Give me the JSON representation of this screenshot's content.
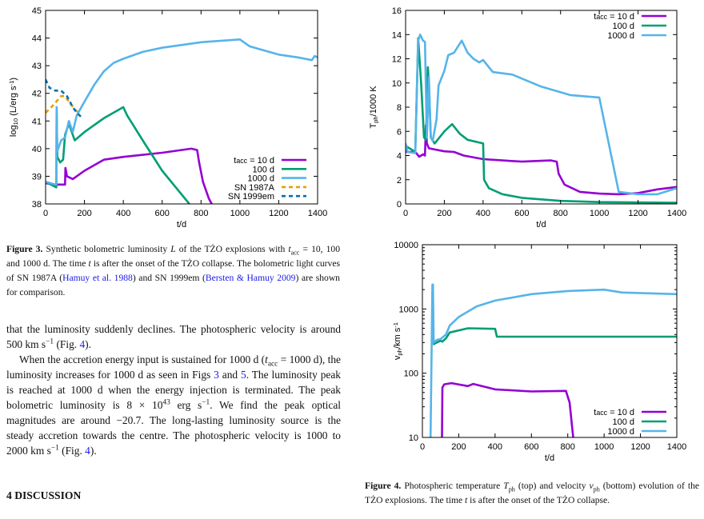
{
  "figure3": {
    "caption_label": "Figure 3.",
    "caption_parts": [
      " Synthetic bolometric luminosity ",
      "L",
      " of the TŻO explosions with ",
      "t",
      "acc",
      " = 10, 100 and 1000 d. The time ",
      "t",
      " is after the onset of the TŻO collapse. The bolometric light curves of SN 1987A (",
      "Hamuy et al. 1988",
      ") and SN 1999em (",
      "Bersten & Hamuy 2009",
      ") are shown for comparison."
    ]
  },
  "figure4": {
    "caption_label": "Figure 4.",
    "caption_parts": [
      " Photospheric temperature ",
      "T",
      "ph",
      " (top) and velocity ",
      "v",
      "ph",
      " (bottom) evolution of the TŻO explosions. The time ",
      "t",
      " is after the onset of the TŻO collapse."
    ]
  },
  "body": {
    "p1": [
      "that the luminosity suddenly declines. The photospheric velocity is around 500 km s",
      "−1",
      " (Fig. ",
      "4",
      ")."
    ],
    "p2": [
      "When the accretion energy input is sustained for 1000 d (",
      "t",
      "acc",
      " = 1000 d), the luminosity increases for 1000 d as seen in Figs ",
      "3",
      " and ",
      "5",
      ". The luminosity peak is reached at 1000 d when the energy injection is terminated. The peak bolometric luminosity is 8 × 10",
      "43",
      " erg s",
      "−1",
      ". We find the peak optical magnitudes are around −20.7. The long-lasting luminosity source is the steady accretion towards the centre. The photospheric velocity is 1000 to 2000 km s",
      "−1",
      " (Fig. ",
      "4",
      ")."
    ],
    "section_heading": "4  DISCUSSION"
  },
  "colors": {
    "tacc_10d": "#9400d3",
    "tacc_100d": "#009e73",
    "tacc_1000d": "#56b4e9",
    "sn1987a": "#e69f00",
    "sn1999em": "#0072b2"
  },
  "chart_data": [
    {
      "type": "line",
      "xlabel": "t/d",
      "ylabel": [
        {
          "t": "log"
        },
        {
          "t": "10",
          "sub": true
        },
        {
          "t": " (L/erg s"
        },
        {
          "t": "-1",
          "sup": true
        },
        {
          "t": ")"
        }
      ],
      "xlim": [
        0,
        1400
      ],
      "ylim": [
        38,
        45
      ],
      "yscale": "linear",
      "xticks": [
        0,
        200,
        400,
        600,
        800,
        1000,
        1200,
        1400
      ],
      "yticks": [
        38,
        39,
        40,
        41,
        42,
        43,
        44,
        45
      ],
      "grid": false,
      "legend": "bottom-right",
      "series": [
        {
          "name": [
            {
              "t": "t"
            },
            {
              "t": "acc",
              "small": true
            },
            {
              "t": " = 10 d"
            }
          ],
          "color": "#9400d3",
          "dash": false,
          "points": [
            [
              0,
              38.75
            ],
            [
              50,
              38.7
            ],
            [
              100,
              38.7
            ],
            [
              102,
              39.3
            ],
            [
              110,
              39.0
            ],
            [
              140,
              38.9
            ],
            [
              200,
              39.2
            ],
            [
              300,
              39.6
            ],
            [
              400,
              39.7
            ],
            [
              600,
              39.85
            ],
            [
              750,
              40.0
            ],
            [
              780,
              39.95
            ],
            [
              790,
              39.5
            ],
            [
              810,
              38.8
            ],
            [
              840,
              38.2
            ],
            [
              855,
              38.0
            ]
          ]
        },
        {
          "name": [
            {
              "t": "100 d"
            }
          ],
          "color": "#009e73",
          "dash": false,
          "points": [
            [
              0,
              38.8
            ],
            [
              55,
              38.6
            ],
            [
              57,
              41.5
            ],
            [
              60,
              39.7
            ],
            [
              75,
              39.5
            ],
            [
              90,
              39.6
            ],
            [
              100,
              40.5
            ],
            [
              120,
              40.9
            ],
            [
              150,
              40.3
            ],
            [
              200,
              40.6
            ],
            [
              300,
              41.1
            ],
            [
              400,
              41.5
            ],
            [
              420,
              41.2
            ],
            [
              500,
              40.3
            ],
            [
              600,
              39.2
            ],
            [
              740,
              38.0
            ]
          ]
        },
        {
          "name": [
            {
              "t": "1000 d"
            }
          ],
          "color": "#56b4e9",
          "dash": false,
          "points": [
            [
              0,
              38.8
            ],
            [
              50,
              38.7
            ],
            [
              55,
              38.7
            ],
            [
              57,
              41.5
            ],
            [
              60,
              39.9
            ],
            [
              80,
              40.3
            ],
            [
              100,
              40.4
            ],
            [
              120,
              41.0
            ],
            [
              140,
              40.6
            ],
            [
              160,
              41.2
            ],
            [
              200,
              41.7
            ],
            [
              250,
              42.3
            ],
            [
              300,
              42.8
            ],
            [
              350,
              43.1
            ],
            [
              400,
              43.25
            ],
            [
              500,
              43.5
            ],
            [
              600,
              43.65
            ],
            [
              800,
              43.85
            ],
            [
              1000,
              43.95
            ],
            [
              1050,
              43.7
            ],
            [
              1100,
              43.6
            ],
            [
              1200,
              43.4
            ],
            [
              1300,
              43.3
            ],
            [
              1370,
              43.2
            ],
            [
              1385,
              43.35
            ],
            [
              1400,
              43.3
            ]
          ]
        },
        {
          "name": [
            {
              "t": "SN 1987A"
            }
          ],
          "color": "#e69f00",
          "dash": true,
          "points": [
            [
              0,
              41.3
            ],
            [
              30,
              41.5
            ],
            [
              80,
              41.9
            ],
            [
              100,
              41.9
            ],
            [
              130,
              41.6
            ],
            [
              160,
              41.35
            ],
            [
              180,
              41.3
            ]
          ]
        },
        {
          "name": [
            {
              "t": "SN 1999em"
            }
          ],
          "color": "#0072b2",
          "dash": true,
          "points": [
            [
              0,
              42.5
            ],
            [
              20,
              42.2
            ],
            [
              50,
              42.1
            ],
            [
              80,
              42.1
            ],
            [
              110,
              41.9
            ],
            [
              140,
              41.5
            ],
            [
              160,
              41.3
            ],
            [
              190,
              41.1
            ]
          ]
        }
      ]
    },
    {
      "type": "line",
      "xlabel": "t/d",
      "ylabel": [
        {
          "t": "T"
        },
        {
          "t": "ph",
          "sub": true
        },
        {
          "t": "/1000 K"
        }
      ],
      "xlim": [
        0,
        1400
      ],
      "ylim": [
        0,
        16
      ],
      "yscale": "linear",
      "xticks": [
        0,
        200,
        400,
        600,
        800,
        1000,
        1200,
        1400
      ],
      "yticks": [
        0,
        2,
        4,
        6,
        8,
        10,
        12,
        14,
        16
      ],
      "grid": false,
      "legend": "top-right",
      "series": [
        {
          "name": [
            {
              "t": "t"
            },
            {
              "t": "acc",
              "small": true
            },
            {
              "t": " = 10 d"
            }
          ],
          "color": "#9400d3",
          "dash": false,
          "points": [
            [
              0,
              5
            ],
            [
              5,
              4.3
            ],
            [
              50,
              4.3
            ],
            [
              70,
              3.9
            ],
            [
              90,
              4.1
            ],
            [
              100,
              4.0
            ],
            [
              105,
              6.5
            ],
            [
              110,
              5
            ],
            [
              120,
              4.6
            ],
            [
              150,
              4.5
            ],
            [
              200,
              4.35
            ],
            [
              250,
              4.3
            ],
            [
              300,
              4.0
            ],
            [
              400,
              3.7
            ],
            [
              500,
              3.6
            ],
            [
              600,
              3.5
            ],
            [
              750,
              3.6
            ],
            [
              780,
              3.5
            ],
            [
              790,
              2.5
            ],
            [
              820,
              1.6
            ],
            [
              900,
              1.0
            ],
            [
              1000,
              0.85
            ],
            [
              1100,
              0.8
            ],
            [
              1200,
              0.9
            ],
            [
              1300,
              1.2
            ],
            [
              1400,
              1.4
            ]
          ]
        },
        {
          "name": [
            {
              "t": "100 d"
            }
          ],
          "color": "#009e73",
          "dash": false,
          "points": [
            [
              0,
              4.8
            ],
            [
              50,
              4.3
            ],
            [
              65,
              13.7
            ],
            [
              80,
              10
            ],
            [
              95,
              5.5
            ],
            [
              105,
              5.3
            ],
            [
              115,
              11.3
            ],
            [
              120,
              10
            ],
            [
              130,
              5.5
            ],
            [
              150,
              5
            ],
            [
              200,
              6
            ],
            [
              240,
              6.6
            ],
            [
              280,
              5.8
            ],
            [
              320,
              5.3
            ],
            [
              400,
              5.0
            ],
            [
              405,
              2
            ],
            [
              430,
              1.3
            ],
            [
              500,
              0.8
            ],
            [
              600,
              0.5
            ],
            [
              800,
              0.25
            ],
            [
              1000,
              0.15
            ],
            [
              1400,
              0.1
            ]
          ]
        },
        {
          "name": [
            {
              "t": "1000 d"
            }
          ],
          "color": "#56b4e9",
          "dash": false,
          "points": [
            [
              0,
              5
            ],
            [
              10,
              4.3
            ],
            [
              50,
              4.2
            ],
            [
              65,
              13.5
            ],
            [
              75,
              14
            ],
            [
              90,
              13.5
            ],
            [
              100,
              13.4
            ],
            [
              110,
              5.5
            ],
            [
              120,
              10.5
            ],
            [
              130,
              5.5
            ],
            [
              140,
              5.2
            ],
            [
              160,
              7
            ],
            [
              170,
              9.8
            ],
            [
              200,
              11
            ],
            [
              220,
              12.3
            ],
            [
              250,
              12.5
            ],
            [
              290,
              13.5
            ],
            [
              320,
              12.5
            ],
            [
              350,
              12
            ],
            [
              380,
              11.7
            ],
            [
              400,
              11.9
            ],
            [
              420,
              11.5
            ],
            [
              450,
              10.9
            ],
            [
              550,
              10.7
            ],
            [
              700,
              9.7
            ],
            [
              850,
              9.0
            ],
            [
              1000,
              8.8
            ],
            [
              1100,
              1.0
            ],
            [
              1200,
              0.8
            ],
            [
              1300,
              0.8
            ],
            [
              1400,
              1.3
            ]
          ]
        }
      ]
    },
    {
      "type": "line",
      "xlabel": "t/d",
      "ylabel": [
        {
          "t": "v"
        },
        {
          "t": "ph",
          "sub": true
        },
        {
          "t": "/km s"
        },
        {
          "t": "-1",
          "sup": true
        }
      ],
      "xlim": [
        0,
        1400
      ],
      "ylim": [
        10,
        10000
      ],
      "yscale": "log",
      "xticks": [
        0,
        200,
        400,
        600,
        800,
        1000,
        1200,
        1400
      ],
      "yticks": [
        10,
        100,
        1000,
        10000
      ],
      "grid": false,
      "legend": "bottom-right",
      "series": [
        {
          "name": [
            {
              "t": "t"
            },
            {
              "t": "acc",
              "small": true
            },
            {
              "t": " = 10 d"
            }
          ],
          "color": "#9400d3",
          "dash": false,
          "points": [
            [
              108,
              10
            ],
            [
              110,
              60
            ],
            [
              120,
              67
            ],
            [
              160,
              70
            ],
            [
              250,
              63
            ],
            [
              280,
              68
            ],
            [
              400,
              56
            ],
            [
              600,
              52
            ],
            [
              790,
              53
            ],
            [
              810,
              35
            ],
            [
              830,
              10
            ]
          ]
        },
        {
          "name": [
            {
              "t": "100 d"
            }
          ],
          "color": "#009e73",
          "dash": false,
          "points": [
            [
              58,
              280
            ],
            [
              100,
              320
            ],
            [
              110,
              310
            ],
            [
              130,
              350
            ],
            [
              150,
              430
            ],
            [
              250,
              500
            ],
            [
              400,
              490
            ],
            [
              410,
              370
            ],
            [
              1400,
              370
            ]
          ]
        },
        {
          "name": [
            {
              "t": "1000 d"
            }
          ],
          "color": "#56b4e9",
          "dash": false,
          "points": [
            [
              45,
              10
            ],
            [
              55,
              2400
            ],
            [
              58,
              2400
            ],
            [
              62,
              300
            ],
            [
              80,
              330
            ],
            [
              100,
              340
            ],
            [
              130,
              400
            ],
            [
              150,
              550
            ],
            [
              200,
              750
            ],
            [
              300,
              1100
            ],
            [
              400,
              1350
            ],
            [
              600,
              1700
            ],
            [
              800,
              1900
            ],
            [
              1000,
              2000
            ],
            [
              1100,
              1800
            ],
            [
              1400,
              1700
            ]
          ]
        }
      ]
    }
  ]
}
